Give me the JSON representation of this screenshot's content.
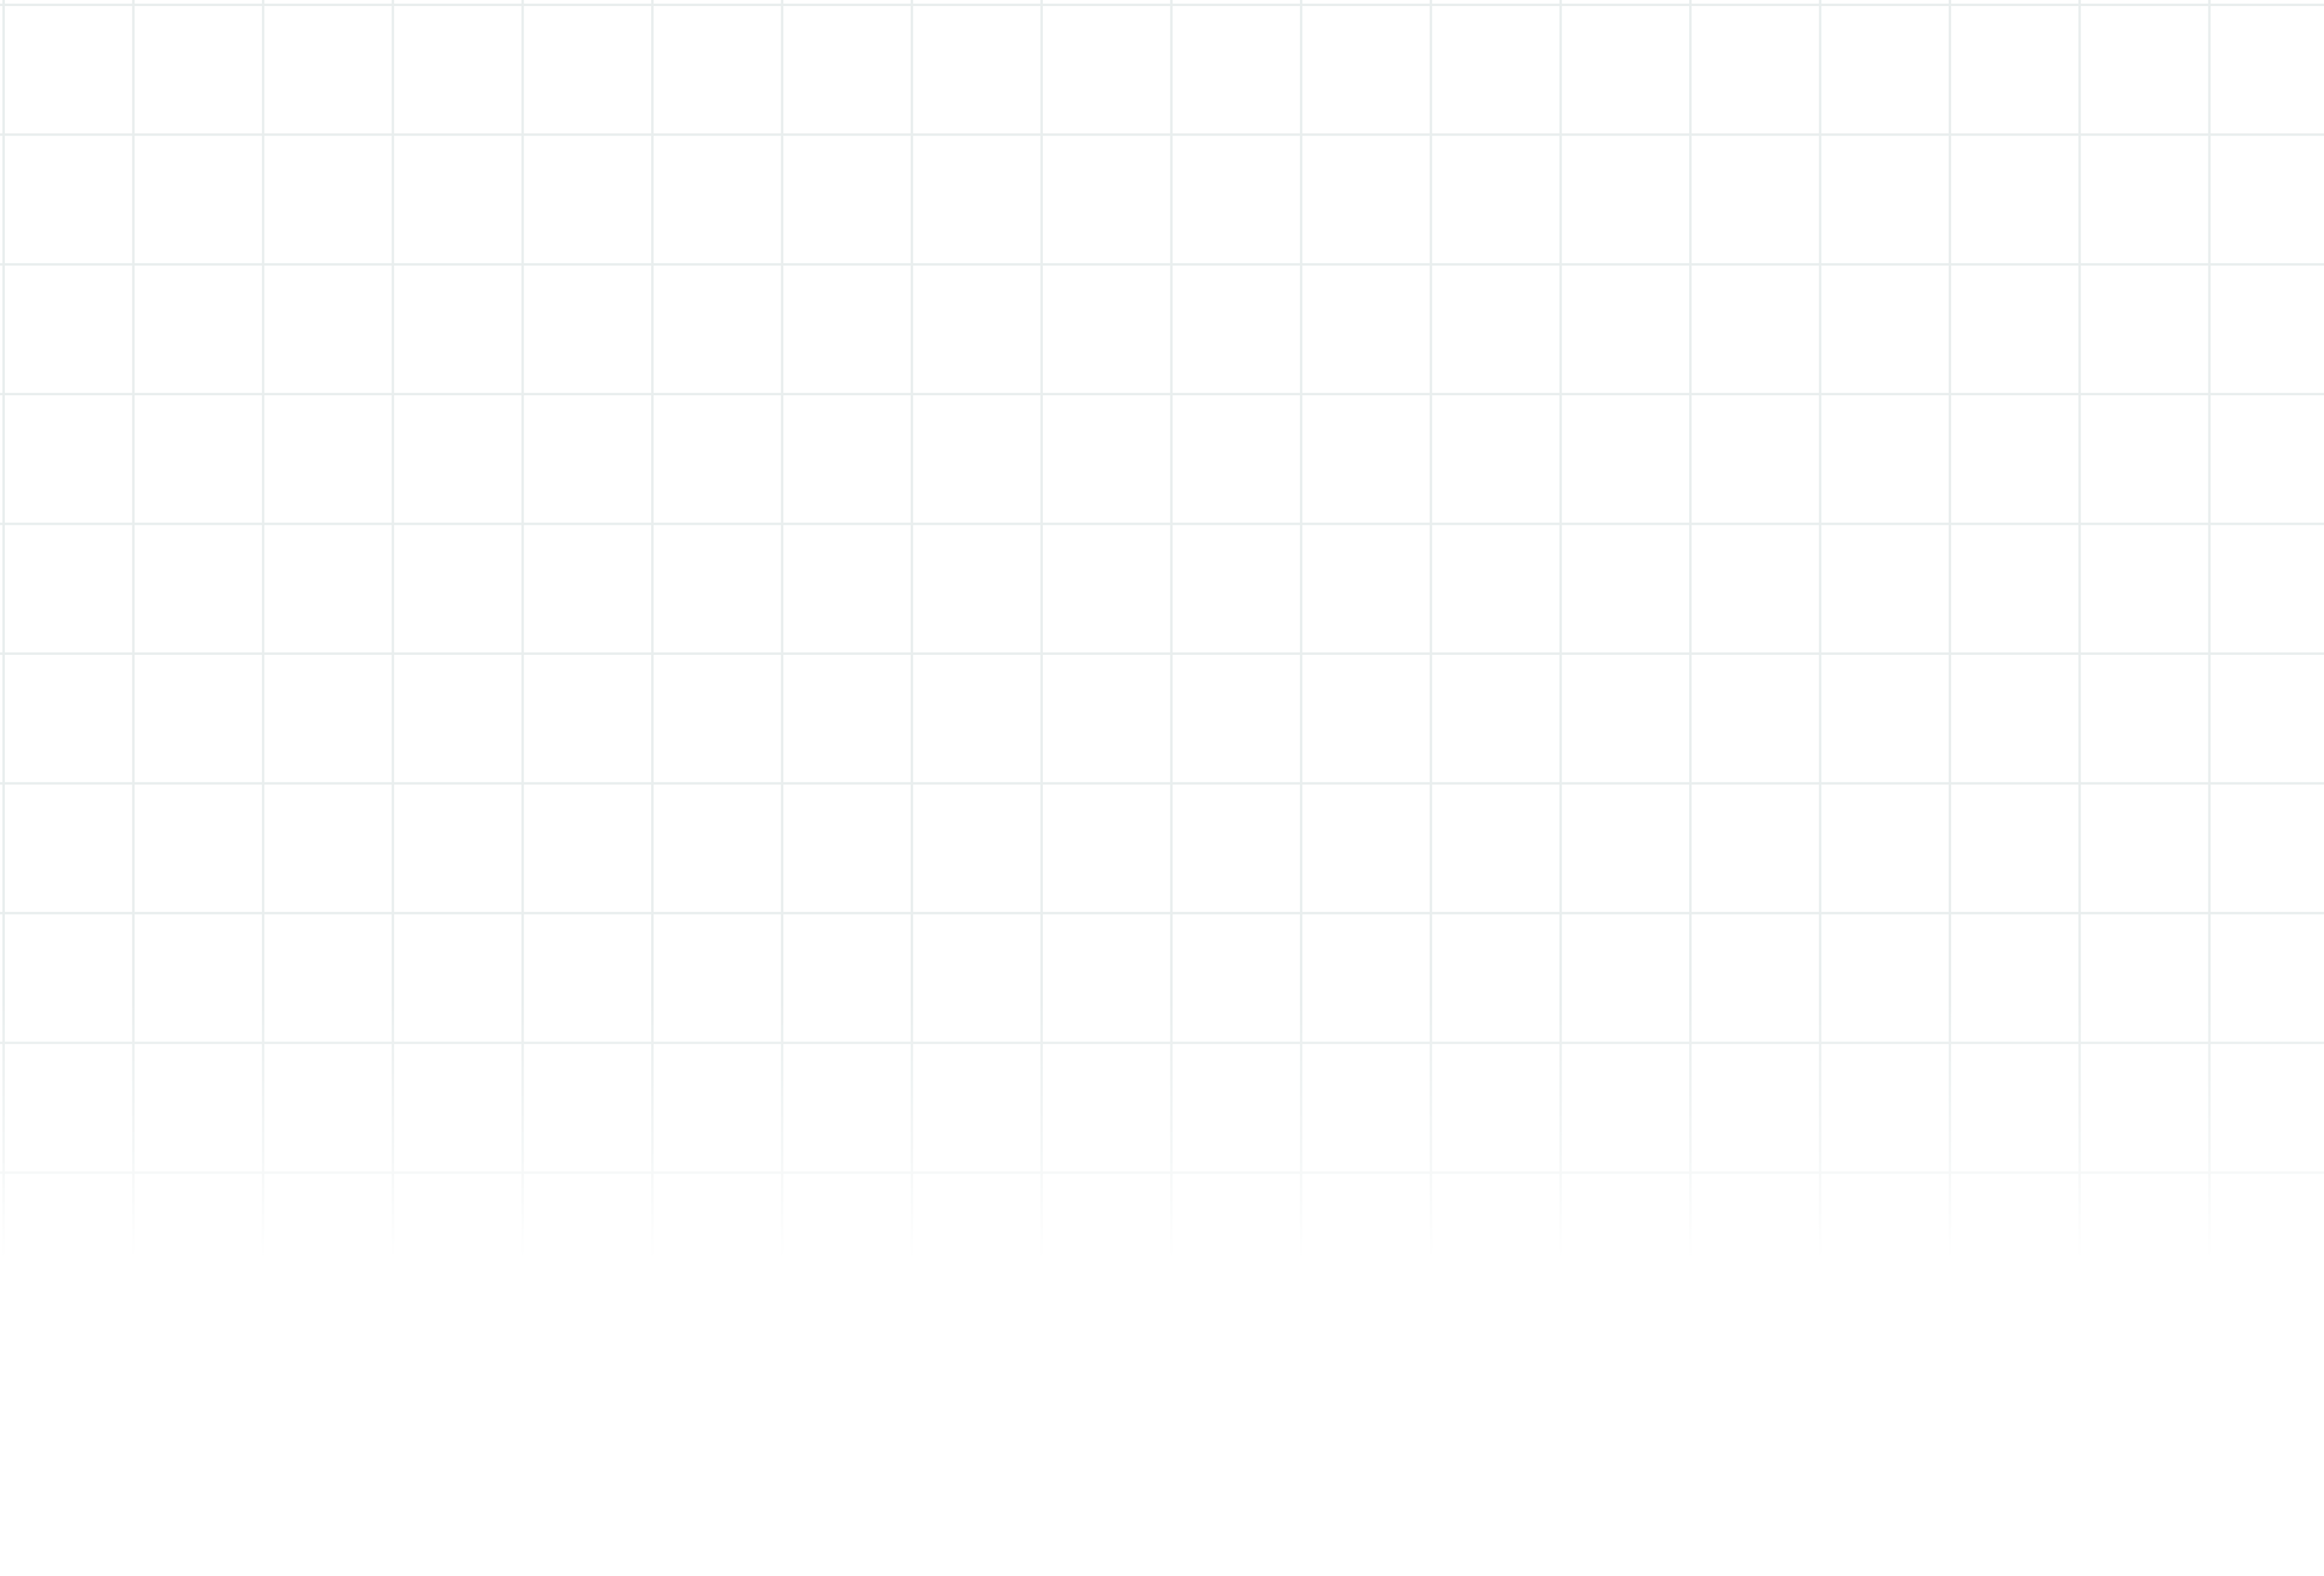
{
  "canvas": {
    "background_color": "#ffffff",
    "grid_color": "#f2f5f5",
    "grid": true
  }
}
